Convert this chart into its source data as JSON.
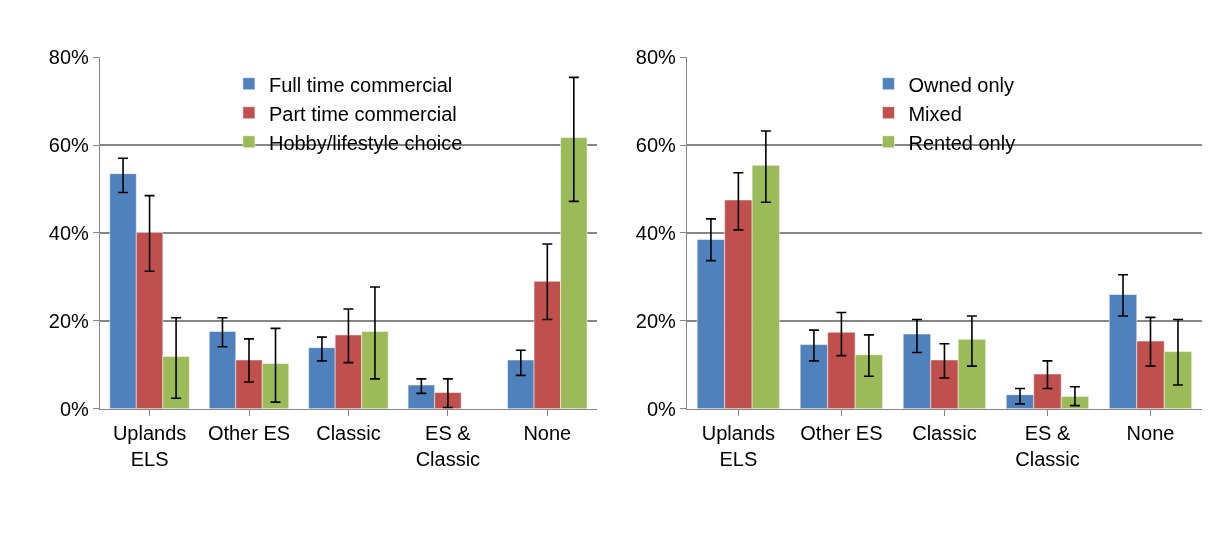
{
  "chart_data": [
    {
      "type": "bar",
      "categories": [
        "Uplands\nELS",
        "Other ES",
        "Classic",
        "ES &\nClassic",
        "None"
      ],
      "ylim": [
        0,
        80
      ],
      "yticks": [
        {
          "value": 0,
          "label": "0%"
        },
        {
          "value": 20,
          "label": "20%"
        },
        {
          "value": 40,
          "label": "40%"
        },
        {
          "value": 60,
          "label": "60%"
        },
        {
          "value": 80,
          "label": "80%"
        }
      ],
      "grid": "y",
      "legend": "top",
      "series": [
        {
          "name": "Full time commercial",
          "color": "#4f81bd",
          "values": [
            53.5,
            17.6,
            13.9,
            5.4,
            11.1
          ],
          "errors": [
            [
              49.2,
              57.0
            ],
            [
              14.1,
              20.7
            ],
            [
              10.9,
              16.3
            ],
            [
              3.5,
              6.8
            ],
            [
              7.6,
              13.3
            ]
          ]
        },
        {
          "name": "Part time commercial",
          "color": "#c0504d",
          "values": [
            40.1,
            11.1,
            16.8,
            3.7,
            29.0
          ],
          "errors": [
            [
              31.3,
              48.5
            ],
            [
              6.1,
              15.9
            ],
            [
              10.5,
              22.7
            ],
            [
              0.3,
              6.8
            ],
            [
              20.3,
              37.5
            ]
          ]
        },
        {
          "name": "Hobby/lifestyle choice",
          "color": "#9bbb59",
          "values": [
            11.9,
            10.3,
            17.6,
            null,
            61.7
          ],
          "errors": [
            [
              2.4,
              20.7
            ],
            [
              1.5,
              18.3
            ],
            [
              6.8,
              27.7
            ],
            null,
            [
              47.2,
              75.4
            ]
          ]
        }
      ]
    },
    {
      "type": "bar",
      "categories": [
        "Uplands\nELS",
        "Other ES",
        "Classic",
        "ES &\nClassic",
        "None"
      ],
      "ylim": [
        0,
        80
      ],
      "yticks": [
        {
          "value": 0,
          "label": "0%"
        },
        {
          "value": 20,
          "label": "20%"
        },
        {
          "value": 40,
          "label": "40%"
        },
        {
          "value": 60,
          "label": "60%"
        },
        {
          "value": 80,
          "label": "80%"
        }
      ],
      "grid": "y",
      "legend": "top",
      "series": [
        {
          "name": "Owned only",
          "color": "#4f81bd",
          "values": [
            38.5,
            14.6,
            17.0,
            3.2,
            26.0
          ],
          "errors": [
            [
              33.7,
              43.2
            ],
            [
              10.9,
              17.9
            ],
            [
              12.8,
              20.3
            ],
            [
              1.1,
              4.6
            ],
            [
              21.1,
              30.5
            ]
          ]
        },
        {
          "name": "Mixed",
          "color": "#c0504d",
          "values": [
            47.5,
            17.4,
            11.1,
            7.9,
            15.4
          ],
          "errors": [
            [
              40.7,
              53.7
            ],
            [
              12.1,
              21.9
            ],
            [
              7.0,
              14.8
            ],
            [
              4.6,
              10.9
            ],
            [
              9.7,
              20.8
            ]
          ]
        },
        {
          "name": "Rented only",
          "color": "#9bbb59",
          "values": [
            55.4,
            12.3,
            15.8,
            2.8,
            13.0
          ],
          "errors": [
            [
              47.0,
              63.2
            ],
            [
              7.4,
              16.8
            ],
            [
              9.7,
              21.1
            ],
            [
              0.7,
              5.0
            ],
            [
              5.4,
              20.3
            ]
          ]
        }
      ]
    }
  ]
}
